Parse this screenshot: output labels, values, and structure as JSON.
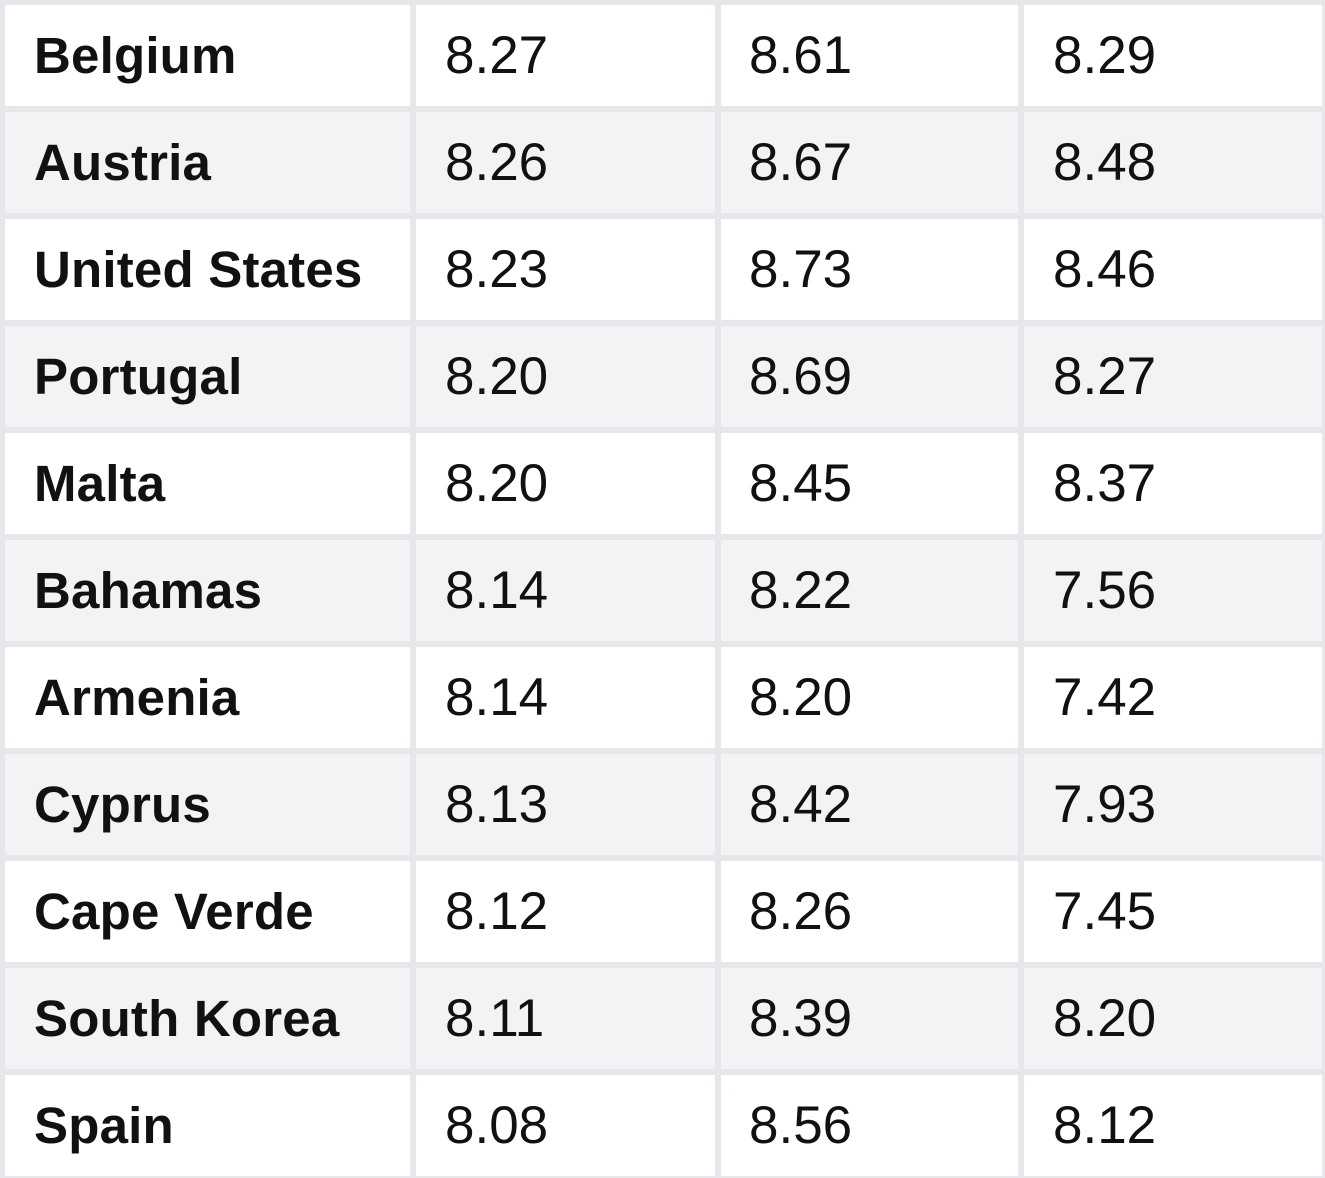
{
  "table": {
    "rows": [
      {
        "country": "Belgium",
        "v1": "8.27",
        "v2": "8.61",
        "v3": "8.29"
      },
      {
        "country": "Austria",
        "v1": "8.26",
        "v2": "8.67",
        "v3": "8.48"
      },
      {
        "country": "United States",
        "v1": "8.23",
        "v2": "8.73",
        "v3": "8.46"
      },
      {
        "country": "Portugal",
        "v1": "8.20",
        "v2": "8.69",
        "v3": "8.27"
      },
      {
        "country": "Malta",
        "v1": "8.20",
        "v2": "8.45",
        "v3": "8.37"
      },
      {
        "country": "Bahamas",
        "v1": "8.14",
        "v2": "8.22",
        "v3": "7.56"
      },
      {
        "country": "Armenia",
        "v1": "8.14",
        "v2": "8.20",
        "v3": "7.42"
      },
      {
        "country": "Cyprus",
        "v1": "8.13",
        "v2": "8.42",
        "v3": "7.93"
      },
      {
        "country": "Cape Verde",
        "v1": "8.12",
        "v2": "8.26",
        "v3": "7.45"
      },
      {
        "country": "South Korea",
        "v1": "8.11",
        "v2": "8.39",
        "v3": "8.20"
      },
      {
        "country": "Spain",
        "v1": "8.08",
        "v2": "8.56",
        "v3": "8.12"
      }
    ]
  },
  "colors": {
    "text": "#111111",
    "row_white": "#ffffff",
    "row_stripe": "#f2f3f5",
    "grid": "#e6e7ea"
  }
}
